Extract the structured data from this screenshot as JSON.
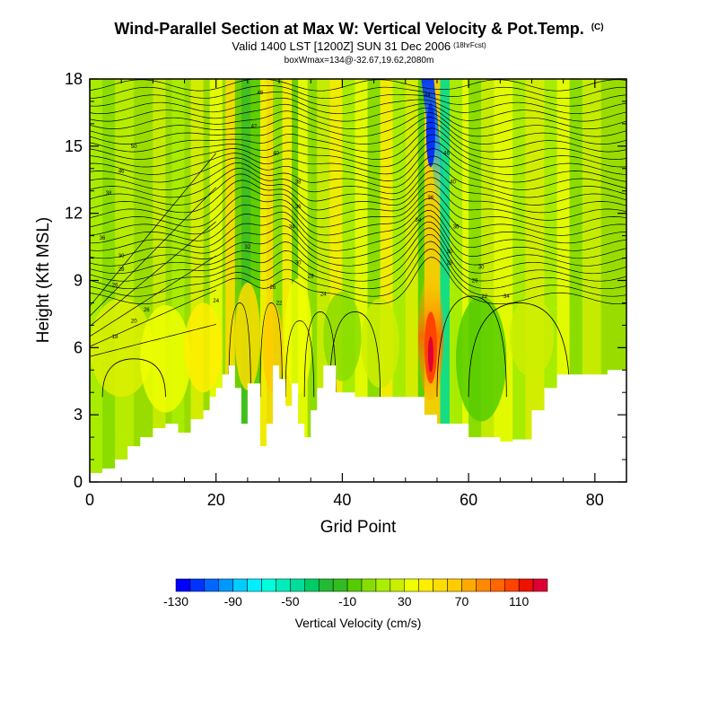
{
  "header": {
    "title": "Wind-Parallel Section at Max W: Vertical Velocity & Pot.Temp.",
    "title_tag": "(C)",
    "subtitle": "Valid 1400 LST [1200Z] SUN 31 Dec 2006",
    "subtitle_tag": "(18hrFcst)",
    "info": "boxWmax=134@-32.67,19.62,2080m"
  },
  "chart_data": {
    "type": "heatmap",
    "xlabel": "Grid Point",
    "ylabel": "Height (Kft MSL)",
    "xlim": [
      0,
      85
    ],
    "ylim": [
      0,
      18
    ],
    "x_ticks": [
      "0",
      "20",
      "40",
      "60",
      "80"
    ],
    "x_tick_values": [
      0,
      20,
      40,
      60,
      80
    ],
    "y_ticks": [
      "0",
      "3",
      "6",
      "9",
      "12",
      "15",
      "18"
    ],
    "y_tick_values": [
      0,
      3,
      6,
      9,
      12,
      15,
      18
    ],
    "colorbar": {
      "label": "Vertical Velocity (cm/s)",
      "tick_labels": [
        "-130",
        "-90",
        "-50",
        "-10",
        "30",
        "70",
        "110"
      ],
      "tick_values": [
        -130,
        -90,
        -50,
        -10,
        30,
        70,
        110
      ],
      "range": [
        -130,
        130
      ],
      "levels": 26,
      "colors": [
        "#0000ff",
        "#0033ff",
        "#0066ff",
        "#0099ff",
        "#00ccff",
        "#00eeff",
        "#00ffdd",
        "#00eebb",
        "#00dd99",
        "#00cc66",
        "#22bb33",
        "#33bb22",
        "#55cc00",
        "#88dd00",
        "#aaee00",
        "#ccee00",
        "#eeff00",
        "#ffee00",
        "#ffdd00",
        "#ffcc00",
        "#ffaa00",
        "#ff8800",
        "#ff6600",
        "#ff4400",
        "#ee1100",
        "#dd0033"
      ]
    },
    "features": [
      {
        "name": "updraft core",
        "x": 54,
        "height_kft": 6.5,
        "w_cm_s": 134
      },
      {
        "name": "downdraft core",
        "x": 54,
        "height_kft": 15.5,
        "w_cm_s": -130
      }
    ],
    "terrain_kft": [
      [
        0,
        0.4
      ],
      [
        2,
        0.6
      ],
      [
        4,
        1.0
      ],
      [
        6,
        1.6
      ],
      [
        8,
        2.0
      ],
      [
        10,
        2.4
      ],
      [
        12,
        2.6
      ],
      [
        14,
        2.2
      ],
      [
        16,
        2.8
      ],
      [
        18,
        3.2
      ],
      [
        19,
        3.8
      ],
      [
        20,
        4.2
      ],
      [
        21,
        4.8
      ],
      [
        22,
        5.2
      ],
      [
        23,
        4.2
      ],
      [
        24,
        2.6
      ],
      [
        25,
        4.4
      ],
      [
        26,
        4.4
      ],
      [
        27,
        1.6
      ],
      [
        28,
        2.6
      ],
      [
        29,
        5.2
      ],
      [
        30,
        4.6
      ],
      [
        31,
        3.4
      ],
      [
        32,
        4.4
      ],
      [
        33,
        2.6
      ],
      [
        34,
        2.0
      ],
      [
        35,
        3.2
      ],
      [
        36,
        4.2
      ],
      [
        37,
        5.2
      ],
      [
        38,
        5.2
      ],
      [
        39,
        4.0
      ],
      [
        42,
        3.8
      ],
      [
        52,
        3.8
      ],
      [
        53,
        3.0
      ],
      [
        55,
        2.6
      ],
      [
        60,
        2.0
      ],
      [
        65,
        1.8
      ],
      [
        67,
        1.9
      ],
      [
        70,
        3.2
      ],
      [
        72,
        4.2
      ],
      [
        74,
        4.8
      ],
      [
        78,
        4.8
      ],
      [
        82,
        5.0
      ],
      [
        85,
        4.6
      ]
    ],
    "theta_contour_labels": [
      {
        "text": "46",
        "x": 27,
        "y": 17.4
      },
      {
        "text": "42",
        "x": 26,
        "y": 15.9
      },
      {
        "text": "40",
        "x": 29.5,
        "y": 14.7
      },
      {
        "text": "38",
        "x": 33,
        "y": 13.4
      },
      {
        "text": "36",
        "x": 33,
        "y": 12.3
      },
      {
        "text": "34",
        "x": 32,
        "y": 11.4
      },
      {
        "text": "32",
        "x": 25,
        "y": 10.5
      },
      {
        "text": "30",
        "x": 33,
        "y": 9.8
      },
      {
        "text": "28",
        "x": 35,
        "y": 9.2
      },
      {
        "text": "26",
        "x": 29,
        "y": 8.7
      },
      {
        "text": "24",
        "x": 37,
        "y": 8.4
      },
      {
        "text": "22",
        "x": 30,
        "y": 8.0
      },
      {
        "text": "24",
        "x": 20,
        "y": 8.1
      },
      {
        "text": "50",
        "x": 7,
        "y": 15.0
      },
      {
        "text": "46",
        "x": 5,
        "y": 13.9
      },
      {
        "text": "38",
        "x": 3,
        "y": 12.9
      },
      {
        "text": "36",
        "x": 2,
        "y": 10.9
      },
      {
        "text": "30",
        "x": 5,
        "y": 10.1
      },
      {
        "text": "28",
        "x": 5,
        "y": 9.5
      },
      {
        "text": "26",
        "x": 4,
        "y": 8.8
      },
      {
        "text": "26",
        "x": 9,
        "y": 7.7
      },
      {
        "text": "20",
        "x": 7,
        "y": 7.2
      },
      {
        "text": "18",
        "x": 4,
        "y": 6.5
      },
      {
        "text": "44",
        "x": 53.5,
        "y": 17.3
      },
      {
        "text": "46",
        "x": 56.5,
        "y": 14.7
      },
      {
        "text": "40",
        "x": 57.5,
        "y": 13.4
      },
      {
        "text": "36",
        "x": 54,
        "y": 12.7
      },
      {
        "text": "34",
        "x": 52,
        "y": 11.7
      },
      {
        "text": "36",
        "x": 58,
        "y": 11.4
      },
      {
        "text": "30",
        "x": 57,
        "y": 10.3
      },
      {
        "text": "28",
        "x": 57,
        "y": 9.8
      },
      {
        "text": "30",
        "x": 62,
        "y": 9.6
      },
      {
        "text": "26",
        "x": 61,
        "y": 9.0
      },
      {
        "text": "34",
        "x": 66,
        "y": 8.3
      },
      {
        "text": "22",
        "x": 62.5,
        "y": 8.3
      }
    ]
  }
}
